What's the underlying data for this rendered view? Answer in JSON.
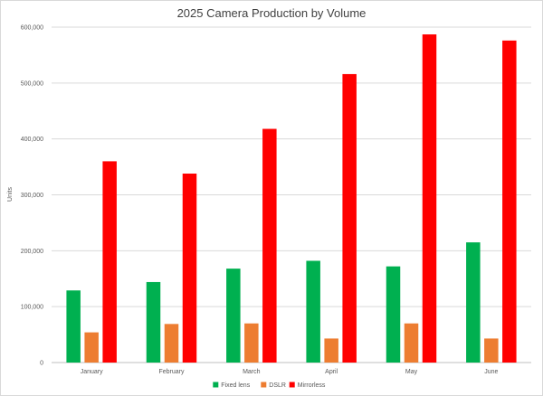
{
  "chart_data": {
    "type": "bar",
    "title": "2025 Camera Production by Volume",
    "xlabel": "",
    "ylabel": "Units",
    "categories": [
      "January",
      "February",
      "March",
      "April",
      "May",
      "June"
    ],
    "series": [
      {
        "name": "Fixed lens",
        "color": "#00b050",
        "values": [
          129000,
          144000,
          168000,
          182000,
          172000,
          215000
        ]
      },
      {
        "name": "DSLR",
        "color": "#ed7d31",
        "values": [
          54000,
          69000,
          70000,
          43000,
          70000,
          43000
        ]
      },
      {
        "name": "Mirrorless",
        "color": "#ff0000",
        "values": [
          360000,
          338000,
          418000,
          516000,
          587000,
          576000
        ]
      }
    ],
    "ylim": [
      0,
      600000
    ],
    "yticks": [
      0,
      100000,
      200000,
      300000,
      400000,
      500000,
      600000
    ],
    "ytick_labels": [
      "0",
      "100,000",
      "200,000",
      "300,000",
      "400,000",
      "500,000",
      "600,000"
    ],
    "grid": true,
    "legend": "bottom"
  }
}
